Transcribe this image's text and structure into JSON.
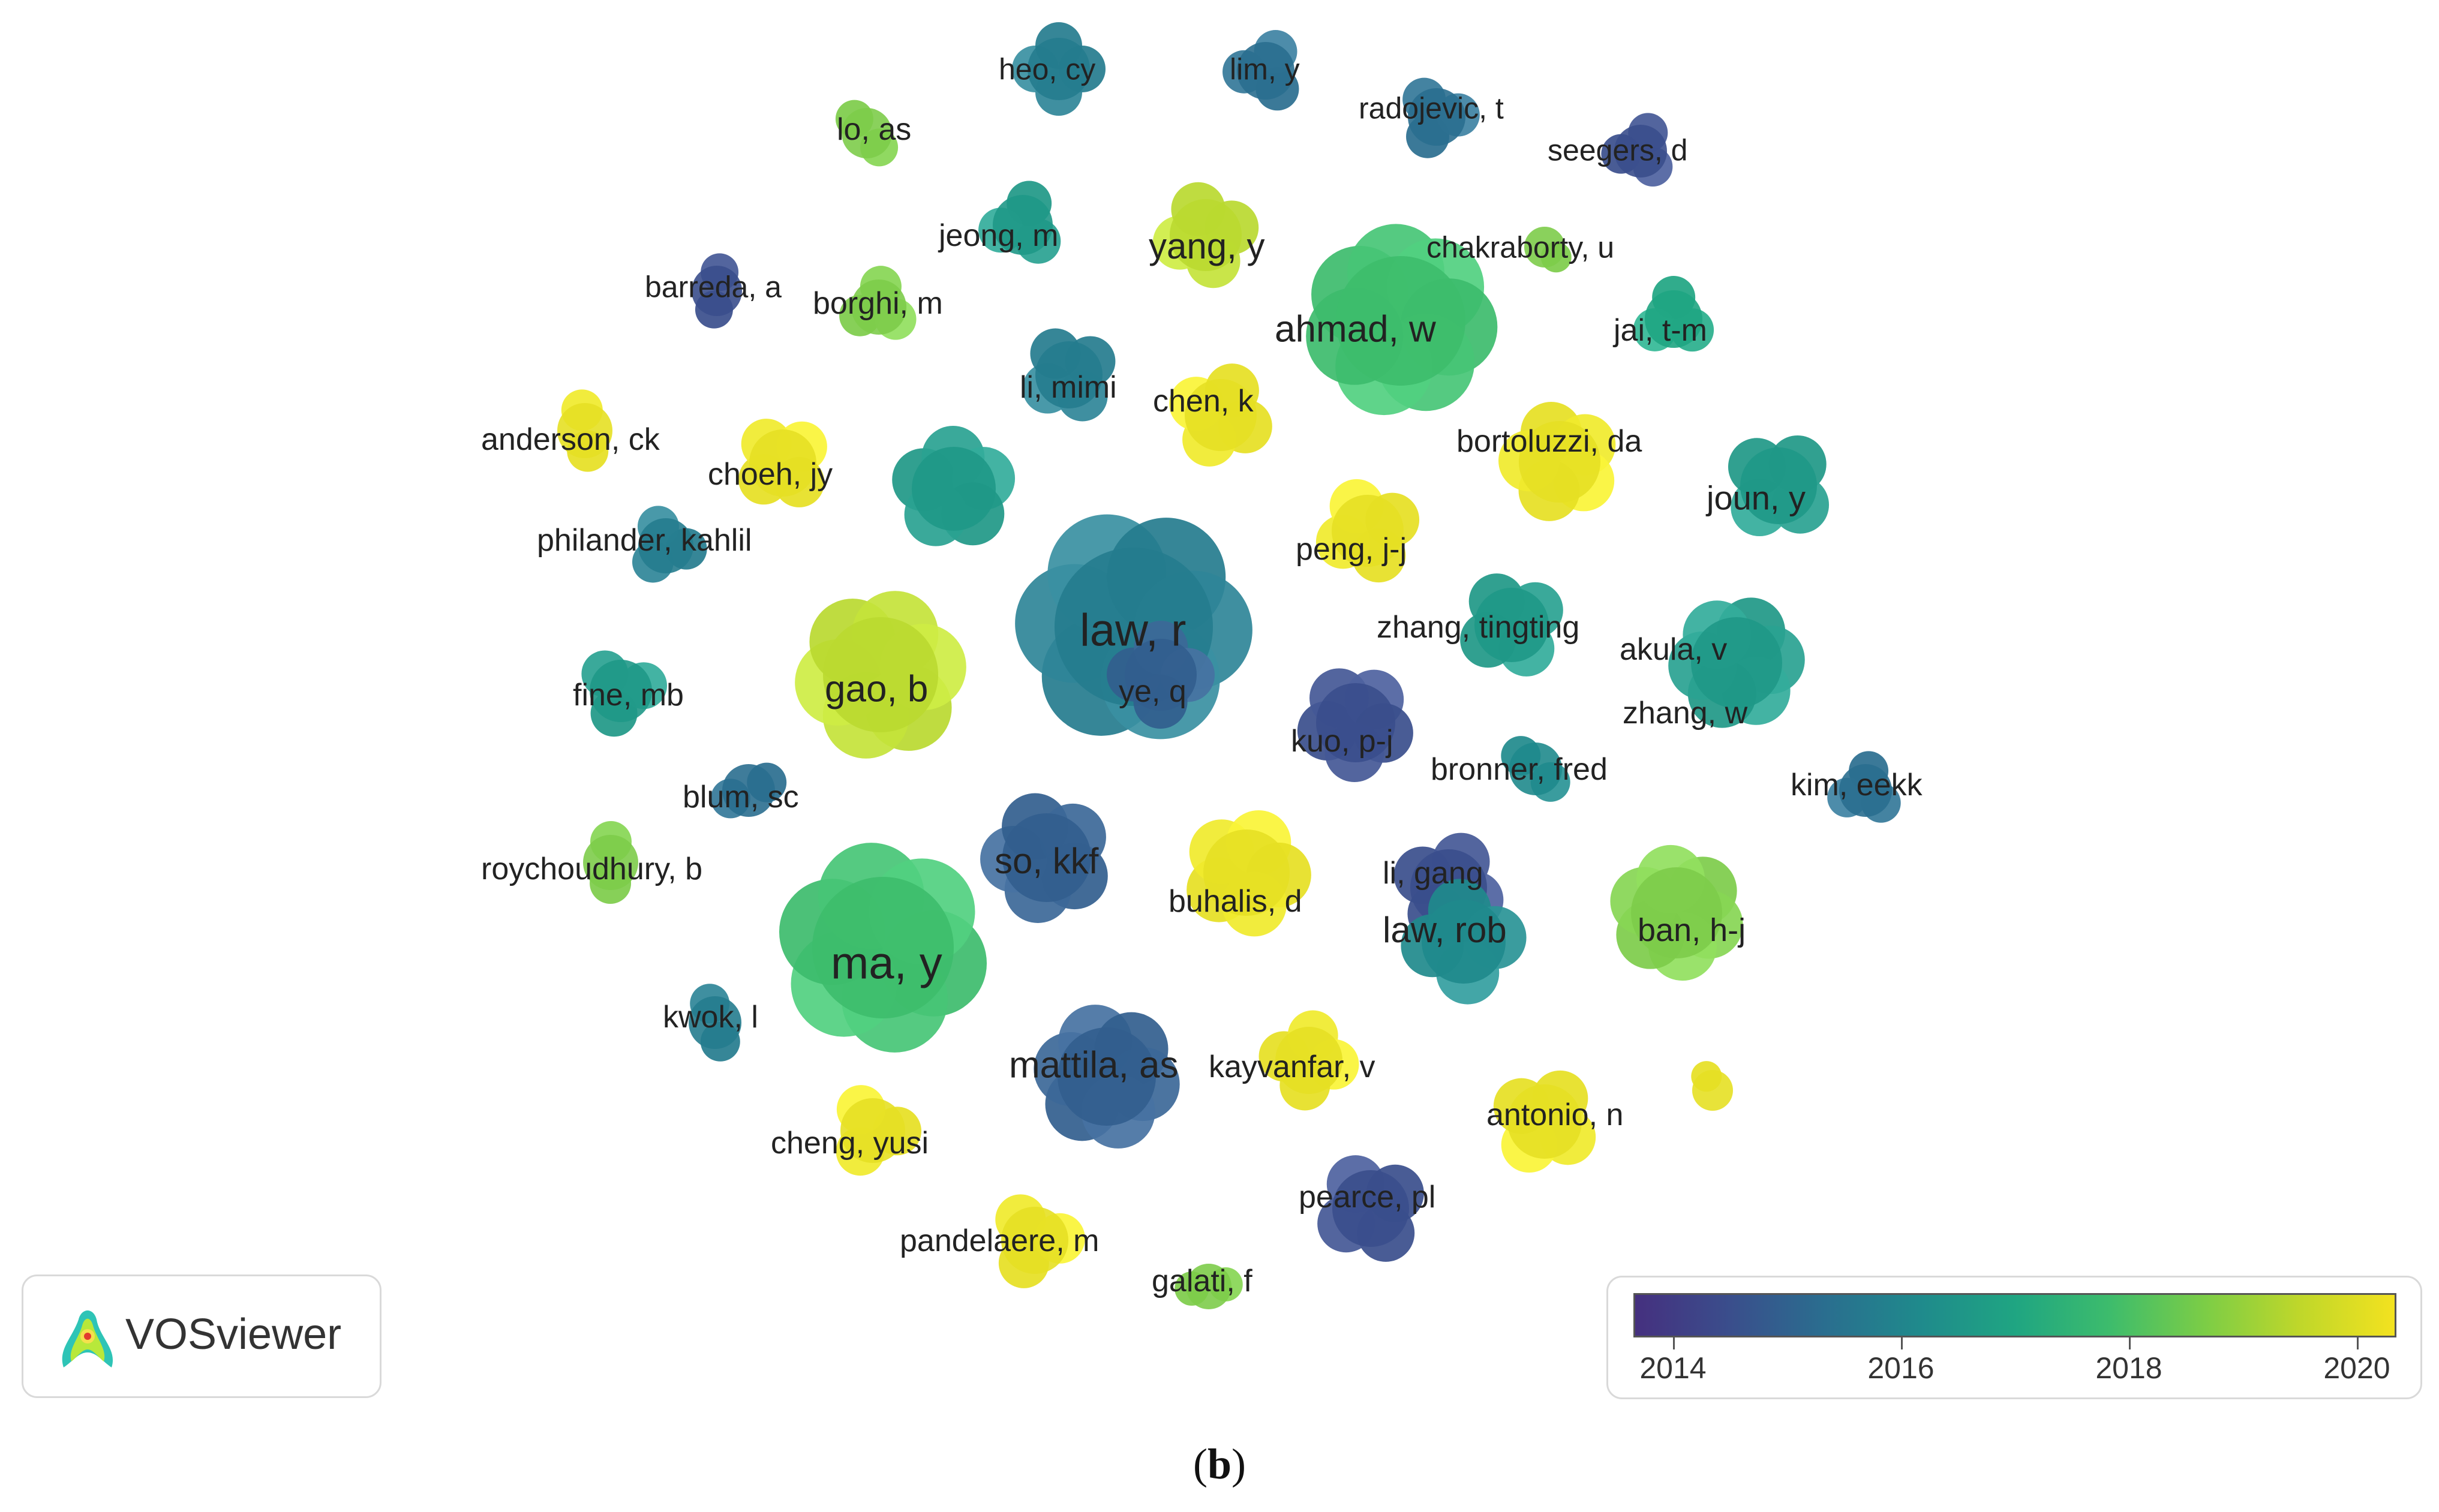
{
  "caption": {
    "open": "(",
    "letter": "b",
    "close": ")"
  },
  "logo": {
    "text": "VOSviewer",
    "icon": "vosviewer-logo-icon"
  },
  "legend": {
    "ticks": [
      "2014",
      "2016",
      "2018",
      "2020"
    ],
    "colors": [
      "#45307f",
      "#3a4e8c",
      "#2a6e8f",
      "#1f8a8c",
      "#1fa582",
      "#3dbc6c",
      "#7ccd46",
      "#bfd72a",
      "#f3e21f"
    ]
  },
  "nodes": [
    {
      "label": "heo, cy",
      "year": 2016
    },
    {
      "label": "lim, y",
      "year": 2015.5
    },
    {
      "label": "radojevic, t",
      "year": 2015.5
    },
    {
      "label": "seegers, d",
      "year": 2014.5
    },
    {
      "label": "lo, as",
      "year": 2019
    },
    {
      "label": "jeong, m",
      "year": 2017
    },
    {
      "label": "yang, y",
      "year": 2019.5
    },
    {
      "label": "chakraborty, u",
      "year": 2019
    },
    {
      "label": "barreda, a",
      "year": 2014.5
    },
    {
      "label": "borghi, m",
      "year": 2019
    },
    {
      "label": "ahmad, w",
      "year": 2018.5
    },
    {
      "label": "jai, t-m",
      "year": 2017.5
    },
    {
      "label": "li, mimi",
      "year": 2016
    },
    {
      "label": "chen, k",
      "year": 2020
    },
    {
      "label": "anderson, ck",
      "year": 2020
    },
    {
      "label": "choeh, jy",
      "year": 2020
    },
    {
      "label": "",
      "year": 2017
    },
    {
      "label": "bortoluzzi, da",
      "year": 2020
    },
    {
      "label": "joun, y",
      "year": 2017
    },
    {
      "label": "philander, kahlil",
      "year": 2016
    },
    {
      "label": "peng, j-j",
      "year": 2020
    },
    {
      "label": "law, r",
      "year": 2016
    },
    {
      "label": "ye, q",
      "year": 2015
    },
    {
      "label": "zhang, tingting",
      "year": 2017
    },
    {
      "label": "akula, v",
      "year": 2017
    },
    {
      "label": "zhang, w",
      "year": 2017
    },
    {
      "label": "gao, b",
      "year": 2019.5
    },
    {
      "label": "fine, mb",
      "year": 2017
    },
    {
      "label": "kuo, p-j",
      "year": 2014.5
    },
    {
      "label": "bronner, fred",
      "year": 2016.5
    },
    {
      "label": "kim, eekk",
      "year": 2015.5
    },
    {
      "label": "blum, sc",
      "year": 2015.5
    },
    {
      "label": "so, kkf",
      "year": 2015
    },
    {
      "label": "roychoudhury, b",
      "year": 2019
    },
    {
      "label": "buhalis, d",
      "year": 2020
    },
    {
      "label": "li, gang",
      "year": 2014.5
    },
    {
      "label": "law, rob",
      "year": 2016.5
    },
    {
      "label": "ban, h-j",
      "year": 2019
    },
    {
      "label": "ma, y",
      "year": 2018.5
    },
    {
      "label": "kwok, l",
      "year": 2016
    },
    {
      "label": "mattila, as",
      "year": 2015
    },
    {
      "label": "kayvanfar, v",
      "year": 2020
    },
    {
      "label": "",
      "year": 2020
    },
    {
      "label": "antonio, n",
      "year": 2020
    },
    {
      "label": "cheng, yusi",
      "year": 2020
    },
    {
      "label": "pearce, pl",
      "year": 2014.5
    },
    {
      "label": "pandelaere, m",
      "year": 2020
    },
    {
      "label": "galati, f",
      "year": 2019
    }
  ]
}
